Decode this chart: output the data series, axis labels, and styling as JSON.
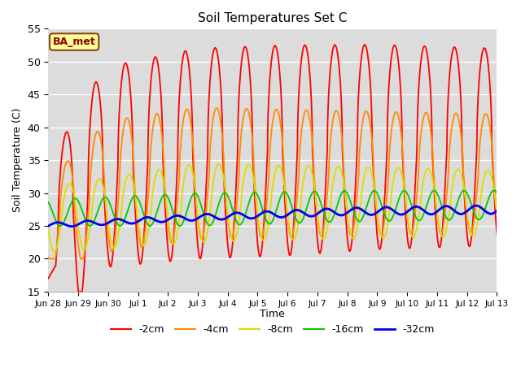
{
  "title": "Soil Temperatures Set C",
  "ylabel": "Soil Temperature (C)",
  "xlabel": "Time",
  "ylim": [
    15,
    55
  ],
  "background_color": "#d8d8d8",
  "plot_bg_color": "#d8d8d8",
  "annotation_text": "BA_met",
  "annotation_bg": "#ffff99",
  "annotation_border": "#8b4513",
  "legend_labels": [
    "-2cm",
    "-4cm",
    "-8cm",
    "-16cm",
    "-32cm"
  ],
  "line_colors": [
    "#ff0000",
    "#ff8c00",
    "#dddd00",
    "#00cc00",
    "#0000ee"
  ],
  "line_widths": [
    1.3,
    1.3,
    1.3,
    1.3,
    2.0
  ],
  "tick_labels": [
    "Jun 28",
    "Jun 29",
    "Jun 30",
    "Jul 1",
    "Jul 2",
    "Jul 3",
    "Jul 4",
    "Jul 5",
    "Jul 6",
    "Jul 7",
    "Jul 8",
    "Jul 9",
    "Jul 10",
    "Jul 11",
    "Jul 12",
    "Jul 13"
  ],
  "yticks": [
    15,
    20,
    25,
    30,
    35,
    40,
    45,
    50,
    55
  ],
  "n_days": 16,
  "pts_per_day": 144
}
